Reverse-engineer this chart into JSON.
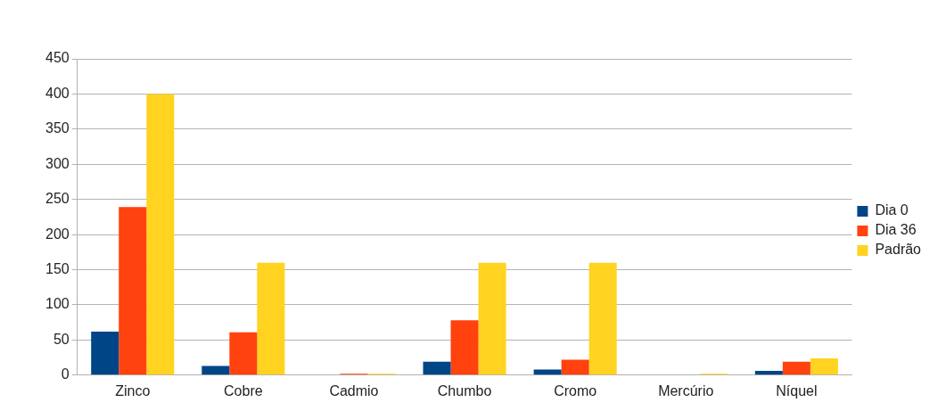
{
  "chart_data": {
    "type": "bar",
    "categories": [
      "Zinco",
      "Cobre",
      "Cadmio",
      "Chumbo",
      "Cromo",
      "Mercúrio",
      "Níquel"
    ],
    "series": [
      {
        "name": "Dia 0",
        "color": "#004586",
        "values": [
          62,
          13,
          0,
          19,
          8,
          0,
          6
        ]
      },
      {
        "name": "Dia 36",
        "color": "#ff420e",
        "values": [
          239,
          61,
          2,
          78,
          22,
          0,
          19
        ]
      },
      {
        "name": "Padrão",
        "color": "#ffd320",
        "values": [
          400,
          160,
          2,
          160,
          160,
          2,
          24
        ]
      }
    ],
    "ylim": [
      0,
      450
    ],
    "yticks": [
      0,
      50,
      100,
      150,
      200,
      250,
      300,
      350,
      400,
      450
    ],
    "grid": "y",
    "legend": "right"
  }
}
